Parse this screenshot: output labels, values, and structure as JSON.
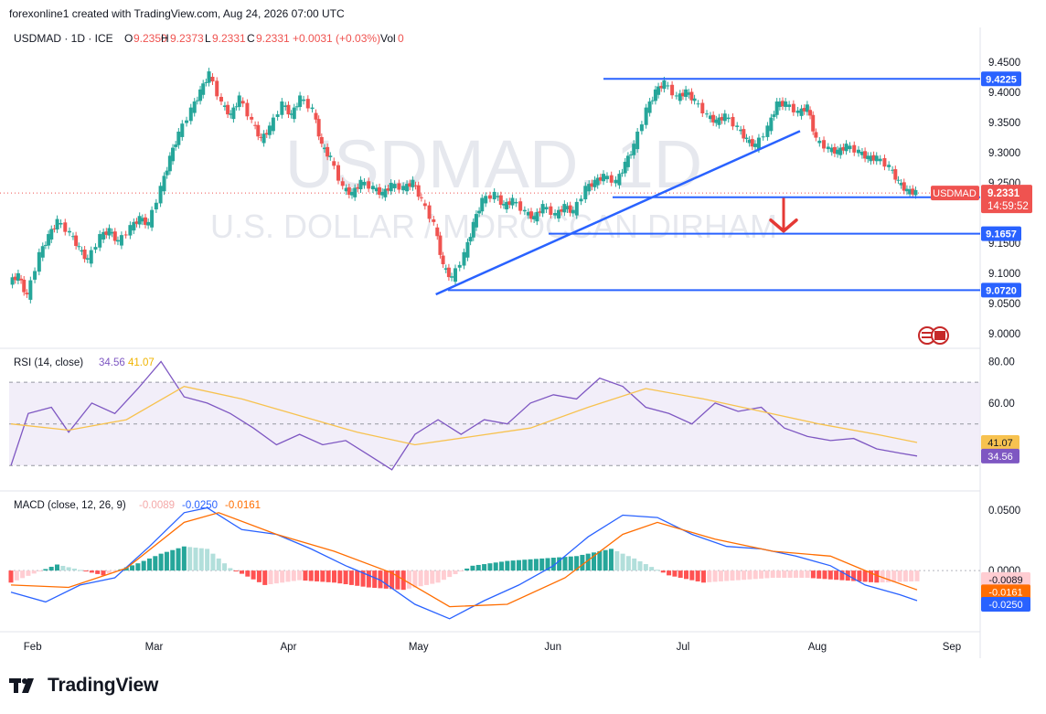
{
  "header": {
    "attribution": "forexonline1 created with TradingView.com, Aug 24, 2026 07:00 UTC"
  },
  "footer": {
    "brand": "TradingView"
  },
  "chart_data": [
    {
      "type": "candlestick",
      "symbol_line": {
        "symbol": "USDMAD · 1D · ICE",
        "open_label": "O",
        "open": "9.2350",
        "high_label": "H",
        "high": "9.2373",
        "low_label": "L",
        "low": "9.2331",
        "close_label": "C",
        "close": "9.2331",
        "change": "+0.0031 (+0.03%)",
        "vol_label": "Vol",
        "vol": "0"
      },
      "watermark": {
        "symbol": "USDMAD, 1D",
        "name": "U.S. DOLLAR / MOROCCAN DIRHAM"
      },
      "y_ticks": [
        "9.4500",
        "9.4000",
        "9.3500",
        "9.3000",
        "9.2500",
        "9.1500",
        "9.1000",
        "9.0500",
        "9.0000"
      ],
      "ylim": [
        8.98,
        9.47
      ],
      "x_ticks": [
        "Feb",
        "Mar",
        "Apr",
        "May",
        "Jun",
        "Jul",
        "Aug",
        "Sep"
      ],
      "levels": [
        {
          "value": 9.4225,
          "label": "9.4225"
        },
        {
          "value": 9.2261,
          "label": "9.2261"
        },
        {
          "value": 9.1657,
          "label": "9.1657"
        },
        {
          "value": 9.072,
          "label": "9.0720"
        }
      ],
      "price_badge": {
        "symbol": "USDMAD",
        "value": "9.2331",
        "countdown": "14:59:52"
      },
      "trendline": {
        "from": [
          "May 5",
          9.065
        ],
        "to": [
          "Jul 28",
          9.336
        ]
      },
      "annotation": "down-arrow",
      "colors": {
        "up": "#26a69a",
        "down": "#ef5350",
        "levels": "#2962ff",
        "badge": "#2962ff"
      },
      "series_close_path": [
        [
          "Jan 27",
          9.085
        ],
        [
          "Jan 29",
          9.095
        ],
        [
          "Jan 31",
          9.06
        ],
        [
          "Feb 3",
          9.13
        ],
        [
          "Feb 5",
          9.16
        ],
        [
          "Feb 7",
          9.185
        ],
        [
          "Feb 10",
          9.165
        ],
        [
          "Feb 12",
          9.14
        ],
        [
          "Feb 14",
          9.12
        ],
        [
          "Feb 17",
          9.16
        ],
        [
          "Feb 19",
          9.17
        ],
        [
          "Feb 21",
          9.15
        ],
        [
          "Feb 24",
          9.175
        ],
        [
          "Feb 26",
          9.19
        ],
        [
          "Feb 28",
          9.18
        ],
        [
          "Mar 3",
          9.24
        ],
        [
          "Mar 5",
          9.29
        ],
        [
          "Mar 7",
          9.33
        ],
        [
          "Mar 10",
          9.37
        ],
        [
          "Mar 12",
          9.4
        ],
        [
          "Mar 14",
          9.43
        ],
        [
          "Mar 17",
          9.38
        ],
        [
          "Mar 19",
          9.36
        ],
        [
          "Mar 21",
          9.39
        ],
        [
          "Mar 24",
          9.35
        ],
        [
          "Mar 26",
          9.32
        ],
        [
          "Mar 28",
          9.34
        ],
        [
          "Mar 31",
          9.38
        ],
        [
          "Apr 2",
          9.36
        ],
        [
          "Apr 4",
          9.39
        ],
        [
          "Apr 7",
          9.37
        ],
        [
          "Apr 9",
          9.31
        ],
        [
          "Apr 11",
          9.29
        ],
        [
          "Apr 14",
          9.24
        ],
        [
          "Apr 16",
          9.23
        ],
        [
          "Apr 18",
          9.25
        ],
        [
          "Apr 21",
          9.24
        ],
        [
          "Apr 23",
          9.23
        ],
        [
          "Apr 25",
          9.245
        ],
        [
          "Apr 28",
          9.24
        ],
        [
          "Apr 30",
          9.25
        ],
        [
          "May 2",
          9.22
        ],
        [
          "May 5",
          9.18
        ],
        [
          "May 7",
          9.11
        ],
        [
          "May 9",
          9.09
        ],
        [
          "May 12",
          9.13
        ],
        [
          "May 14",
          9.18
        ],
        [
          "May 16",
          9.22
        ],
        [
          "May 19",
          9.23
        ],
        [
          "May 21",
          9.21
        ],
        [
          "May 23",
          9.22
        ],
        [
          "May 26",
          9.2
        ],
        [
          "May 28",
          9.19
        ],
        [
          "May 30",
          9.21
        ],
        [
          "Jun 2",
          9.195
        ],
        [
          "Jun 4",
          9.21
        ],
        [
          "Jun 6",
          9.2
        ],
        [
          "Jun 9",
          9.24
        ],
        [
          "Jun 11",
          9.25
        ],
        [
          "Jun 13",
          9.26
        ],
        [
          "Jun 16",
          9.25
        ],
        [
          "Jun 18",
          9.28
        ],
        [
          "Jun 20",
          9.31
        ],
        [
          "Jun 23",
          9.37
        ],
        [
          "Jun 25",
          9.4
        ],
        [
          "Jun 27",
          9.415
        ],
        [
          "Jun 30",
          9.39
        ],
        [
          "Jul 2",
          9.4
        ],
        [
          "Jul 4",
          9.385
        ],
        [
          "Jul 7",
          9.36
        ],
        [
          "Jul 9",
          9.35
        ],
        [
          "Jul 11",
          9.36
        ],
        [
          "Jul 14",
          9.34
        ],
        [
          "Jul 16",
          9.32
        ],
        [
          "Jul 18",
          9.31
        ],
        [
          "Jul 21",
          9.34
        ],
        [
          "Jul 23",
          9.38
        ],
        [
          "Jul 25",
          9.38
        ],
        [
          "Jul 28",
          9.365
        ],
        [
          "Jul 30",
          9.375
        ],
        [
          "Aug 1",
          9.32
        ],
        [
          "Aug 4",
          9.305
        ],
        [
          "Aug 6",
          9.3
        ],
        [
          "Aug 8",
          9.31
        ],
        [
          "Aug 11",
          9.3
        ],
        [
          "Aug 13",
          9.29
        ],
        [
          "Aug 15",
          9.29
        ],
        [
          "Aug 18",
          9.275
        ],
        [
          "Aug 20",
          9.25
        ],
        [
          "Aug 22",
          9.235
        ],
        [
          "Aug 24",
          9.233
        ]
      ]
    },
    {
      "type": "line",
      "title": "RSI (14, close)",
      "values_shown": [
        "34.56",
        "41.07"
      ],
      "y_ticks": [
        "80.00",
        "60.00"
      ],
      "ylim": [
        20,
        85
      ],
      "bands": [
        70,
        50,
        30
      ],
      "series": [
        {
          "name": "RSI",
          "color": "#7e57c2",
          "points": [
            [
              0,
              30
            ],
            [
              3,
              55
            ],
            [
              7,
              58
            ],
            [
              10,
              46
            ],
            [
              14,
              60
            ],
            [
              18,
              55
            ],
            [
              22,
              67
            ],
            [
              26,
              80
            ],
            [
              30,
              63
            ],
            [
              34,
              60
            ],
            [
              38,
              55
            ],
            [
              42,
              48
            ],
            [
              46,
              40
            ],
            [
              50,
              45
            ],
            [
              54,
              40
            ],
            [
              58,
              42
            ],
            [
              62,
              35
            ],
            [
              66,
              28
            ],
            [
              70,
              45
            ],
            [
              74,
              52
            ],
            [
              78,
              45
            ],
            [
              82,
              52
            ],
            [
              86,
              50
            ],
            [
              90,
              60
            ],
            [
              94,
              64
            ],
            [
              98,
              62
            ],
            [
              102,
              72
            ],
            [
              106,
              68
            ],
            [
              110,
              58
            ],
            [
              114,
              55
            ],
            [
              118,
              50
            ],
            [
              122,
              60
            ],
            [
              126,
              56
            ],
            [
              130,
              58
            ],
            [
              134,
              48
            ],
            [
              138,
              44
            ],
            [
              142,
              42
            ],
            [
              146,
              43
            ],
            [
              150,
              38
            ],
            [
              154,
              36
            ],
            [
              157,
              34.56
            ]
          ]
        },
        {
          "name": "MA",
          "color": "#f7c24f",
          "points": [
            [
              0,
              50
            ],
            [
              10,
              47
            ],
            [
              20,
              52
            ],
            [
              30,
              68
            ],
            [
              40,
              62
            ],
            [
              50,
              54
            ],
            [
              60,
              46
            ],
            [
              70,
              40
            ],
            [
              80,
              44
            ],
            [
              90,
              48
            ],
            [
              100,
              58
            ],
            [
              110,
              67
            ],
            [
              120,
              62
            ],
            [
              130,
              56
            ],
            [
              140,
              50
            ],
            [
              150,
              45
            ],
            [
              157,
              41.07
            ]
          ]
        }
      ]
    },
    {
      "type": "bar",
      "title": "MACD (close, 12, 26, 9)",
      "values_shown": [
        "-0.0089",
        "-0.0250",
        "-0.0161"
      ],
      "y_ticks": [
        "0.0500",
        "0.0000"
      ],
      "ylim": [
        -0.05,
        0.06
      ],
      "badges": [
        {
          "label": "-0.0089",
          "color": "#ffcdd2",
          "text_color": "#131722"
        },
        {
          "label": "-0.0161",
          "color": "#ff6d00",
          "text_color": "#ffffff"
        },
        {
          "label": "-0.0250",
          "color": "#2962ff",
          "text_color": "#ffffff"
        }
      ],
      "macd_line": [
        [
          0,
          -0.018
        ],
        [
          6,
          -0.026
        ],
        [
          12,
          -0.012
        ],
        [
          18,
          -0.006
        ],
        [
          24,
          0.02
        ],
        [
          30,
          0.048
        ],
        [
          34,
          0.052
        ],
        [
          40,
          0.034
        ],
        [
          46,
          0.03
        ],
        [
          52,
          0.018
        ],
        [
          58,
          0.004
        ],
        [
          64,
          -0.008
        ],
        [
          70,
          -0.028
        ],
        [
          76,
          -0.04
        ],
        [
          82,
          -0.025
        ],
        [
          88,
          -0.012
        ],
        [
          94,
          0.004
        ],
        [
          100,
          0.028
        ],
        [
          106,
          0.046
        ],
        [
          112,
          0.044
        ],
        [
          118,
          0.03
        ],
        [
          124,
          0.02
        ],
        [
          130,
          0.018
        ],
        [
          136,
          0.012
        ],
        [
          142,
          0.004
        ],
        [
          148,
          -0.012
        ],
        [
          154,
          -0.02
        ],
        [
          157,
          -0.025
        ]
      ],
      "signal_line": [
        [
          0,
          -0.012
        ],
        [
          10,
          -0.014
        ],
        [
          20,
          0.002
        ],
        [
          30,
          0.04
        ],
        [
          36,
          0.048
        ],
        [
          46,
          0.03
        ],
        [
          56,
          0.016
        ],
        [
          66,
          -0.002
        ],
        [
          76,
          -0.03
        ],
        [
          86,
          -0.028
        ],
        [
          96,
          -0.006
        ],
        [
          106,
          0.03
        ],
        [
          112,
          0.04
        ],
        [
          122,
          0.026
        ],
        [
          132,
          0.016
        ],
        [
          142,
          0.012
        ],
        [
          150,
          -0.004
        ],
        [
          157,
          -0.016
        ]
      ],
      "histogram": [
        [
          0,
          -0.01
        ],
        [
          8,
          0.005
        ],
        [
          16,
          -0.004
        ],
        [
          22,
          0.006
        ],
        [
          26,
          0.014
        ],
        [
          30,
          0.02
        ],
        [
          34,
          0.018
        ],
        [
          38,
          0.002
        ],
        [
          44,
          -0.012
        ],
        [
          50,
          -0.008
        ],
        [
          56,
          -0.01
        ],
        [
          62,
          -0.014
        ],
        [
          68,
          -0.016
        ],
        [
          74,
          -0.01
        ],
        [
          80,
          0.004
        ],
        [
          86,
          0.008
        ],
        [
          92,
          0.01
        ],
        [
          98,
          0.012
        ],
        [
          104,
          0.018
        ],
        [
          108,
          0.01
        ],
        [
          114,
          -0.004
        ],
        [
          120,
          -0.01
        ],
        [
          126,
          -0.008
        ],
        [
          132,
          -0.006
        ],
        [
          138,
          -0.006
        ],
        [
          144,
          -0.008
        ],
        [
          150,
          -0.01
        ],
        [
          157,
          -0.0089
        ]
      ]
    }
  ]
}
